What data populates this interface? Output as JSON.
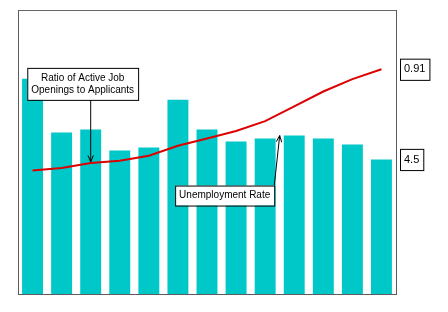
{
  "chart_data": {
    "type": "bar",
    "categories": [
      null,
      null,
      null,
      null,
      null,
      null,
      null,
      null,
      null,
      null,
      null,
      null,
      null
    ],
    "series": [
      {
        "type": "bar",
        "color": "#00C8C8",
        "values": [
          7.2,
          5.4,
          5.5,
          4.8,
          4.9,
          6.5,
          5.5,
          5.1,
          5.2,
          5.3,
          5.2,
          5.0,
          4.5
        ],
        "value_labels": [
          null,
          null,
          null,
          null,
          null,
          null,
          null,
          null,
          null,
          null,
          null,
          null,
          "4.5"
        ]
      },
      {
        "type": "line",
        "color": "#DD0000",
        "axis": "y2",
        "values": [
          0.5,
          0.51,
          0.53,
          0.54,
          0.56,
          0.6,
          0.63,
          0.66,
          0.7,
          0.76,
          0.82,
          0.87,
          0.91
        ],
        "value_labels": [
          null,
          null,
          null,
          null,
          null,
          null,
          null,
          null,
          null,
          null,
          null,
          null,
          "0.91"
        ]
      }
    ],
    "ylim": [
      0,
      9.5
    ],
    "yticks": [],
    "y2lim": [
      0.0,
      1.15
    ],
    "y2ticks": [],
    "grid": false,
    "tick_labels": false,
    "annotations": [
      {
        "text": "Ratio of Active Job\nOpenings to Applicants",
        "x": 2,
        "y": 0.535,
        "axis": "y2"
      },
      {
        "text": "Unemployment Rate",
        "x": 8.5,
        "y": 5.3
      }
    ]
  }
}
